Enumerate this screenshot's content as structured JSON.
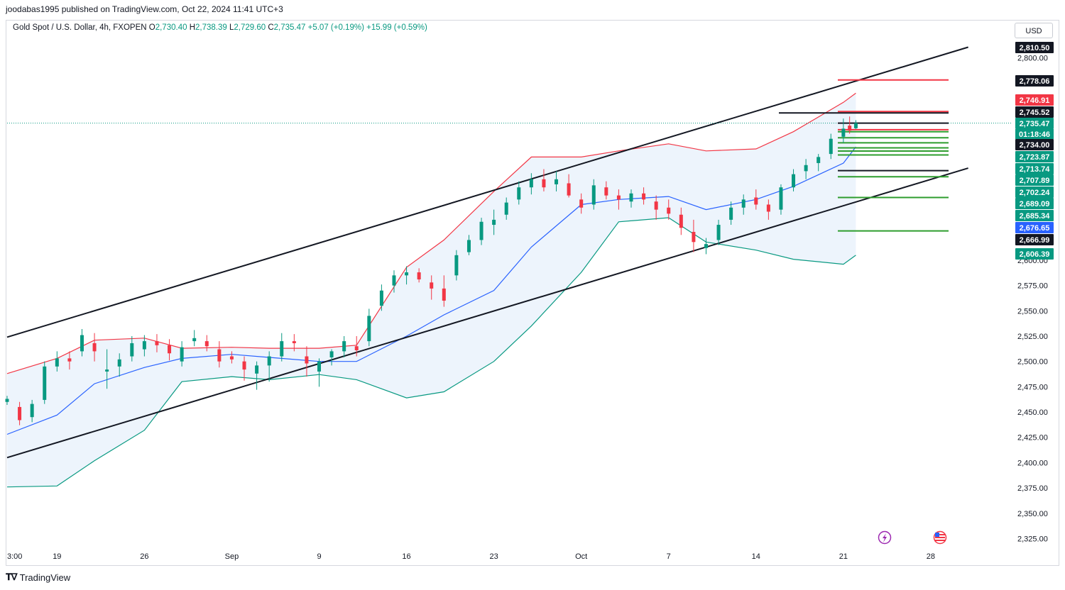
{
  "publisher_line": "joodabas1995 published on TradingView.com, Oct 22, 2024 11:41 UTC+3",
  "legend": {
    "symbol": "Gold Spot / U.S. Dollar, 4h, FXOPEN",
    "open_label": "O",
    "open": "2,730.40",
    "high_label": "H",
    "high": "2,738.39",
    "low_label": "L",
    "low": "2,729.60",
    "close_label": "C",
    "close": "2,735.47",
    "change": "+5.07 (+0.19%)",
    "change2": "+15.99 (+0.59%)"
  },
  "currency_button": "USD",
  "brand": "TradingView",
  "countdown": "01:18:46",
  "colors": {
    "up": "#089981",
    "down": "#f23645",
    "bb_upper": "#f23645",
    "bb_lower": "#089981",
    "bb_mid": "#2962ff",
    "band_fill": "#e8f1fb",
    "trend": "#131722"
  },
  "chart_data": {
    "type": "candlestick",
    "symbol": "Gold Spot / U.S. Dollar",
    "interval": "4h",
    "y_axis": {
      "min": 2325,
      "max": 2810.5,
      "ticks": [
        2325,
        2350,
        2375,
        2400,
        2425,
        2450,
        2475,
        2500,
        2525,
        2550,
        2575,
        2600,
        2800
      ],
      "tick_labels": [
        "2,325.00",
        "2,350.00",
        "2,375.00",
        "2,400.00",
        "2,425.00",
        "2,450.00",
        "2,475.00",
        "2,500.00",
        "2,525.00",
        "2,550.00",
        "2,575.00",
        "2,600.00",
        "2,800.00"
      ]
    },
    "x_axis": {
      "labels": [
        "3:00",
        "19",
        "26",
        "Sep",
        "9",
        "16",
        "23",
        "Oct",
        "7",
        "14",
        "21",
        "28"
      ],
      "dates": [
        "2024-08-15",
        "2024-08-19",
        "2024-08-26",
        "2024-09-02",
        "2024-09-09",
        "2024-09-16",
        "2024-09-23",
        "2024-09-30",
        "2024-10-07",
        "2024-10-14",
        "2024-10-21",
        "2024-10-28"
      ]
    },
    "price_tags": [
      {
        "value": "2,810.50",
        "kind": "black"
      },
      {
        "value": "2,778.06",
        "kind": "black"
      },
      {
        "value": "2,746.91",
        "kind": "red"
      },
      {
        "value": "2,745.52",
        "kind": "black"
      },
      {
        "value": "2,735.47",
        "kind": "green"
      },
      {
        "value": "2,734.00",
        "kind": "black"
      },
      {
        "value": "2,723.87",
        "kind": "green"
      },
      {
        "value": "2,713.74",
        "kind": "green"
      },
      {
        "value": "2,707.89",
        "kind": "green"
      },
      {
        "value": "2,702.24",
        "kind": "green"
      },
      {
        "value": "2,689.09",
        "kind": "green"
      },
      {
        "value": "2,685.34",
        "kind": "green"
      },
      {
        "value": "2,676.65",
        "kind": "blue"
      },
      {
        "value": "2,666.99",
        "kind": "black"
      },
      {
        "value": "2,606.39",
        "kind": "teal"
      }
    ],
    "trendlines": [
      {
        "from": [
          "2024-08-15",
          2524
        ],
        "to": [
          "2024-10-31",
          2810.5
        ]
      },
      {
        "from": [
          "2024-08-15",
          2405
        ],
        "to": [
          "2024-10-31",
          2691
        ]
      }
    ],
    "horizontal_levels": [
      {
        "price": 2778.06,
        "color": "red"
      },
      {
        "price": 2746.91,
        "color": "red"
      },
      {
        "price": 2745.52,
        "color": "black"
      },
      {
        "price": 2735.47,
        "color": "black"
      },
      {
        "price": 2729.0,
        "color": "red"
      },
      {
        "price": 2727.0,
        "color": "green"
      },
      {
        "price": 2721.0,
        "color": "green"
      },
      {
        "price": 2716.0,
        "color": "green"
      },
      {
        "price": 2711.0,
        "color": "green"
      },
      {
        "price": 2707.89,
        "color": "green"
      },
      {
        "price": 2704.0,
        "color": "green"
      },
      {
        "price": 2688.5,
        "color": "black"
      },
      {
        "price": 2682.5,
        "color": "green"
      },
      {
        "price": 2662.0,
        "color": "green"
      },
      {
        "price": 2629.0,
        "color": "green"
      }
    ],
    "bollinger": {
      "x": [
        "2024-08-15",
        "2024-08-19",
        "2024-08-22",
        "2024-08-26",
        "2024-08-29",
        "2024-09-02",
        "2024-09-05",
        "2024-09-09",
        "2024-09-12",
        "2024-09-16",
        "2024-09-19",
        "2024-09-23",
        "2024-09-26",
        "2024-09-30",
        "2024-10-03",
        "2024-10-07",
        "2024-10-10",
        "2024-10-14",
        "2024-10-17",
        "2024-10-21",
        "2024-10-22"
      ],
      "upper": [
        2488,
        2503,
        2521,
        2523,
        2513,
        2514,
        2513,
        2513,
        2516,
        2593,
        2620,
        2668,
        2702,
        2702,
        2708,
        2715,
        2708,
        2710,
        2727,
        2756,
        2765
      ],
      "middle": [
        2428,
        2447,
        2478,
        2494,
        2503,
        2507,
        2504,
        2500,
        2500,
        2525,
        2546,
        2570,
        2613,
        2655,
        2660,
        2663,
        2650,
        2660,
        2673,
        2696,
        2712
      ],
      "lower": [
        2376,
        2377,
        2402,
        2432,
        2480,
        2485,
        2482,
        2487,
        2482,
        2464,
        2470,
        2500,
        2535,
        2588,
        2638,
        2642,
        2618,
        2610,
        2601,
        2596,
        2605
      ]
    },
    "candles": [
      [
        "2024-08-15",
        2460,
        2466,
        2457,
        2463
      ],
      [
        "2024-08-16",
        2455,
        2460,
        2437,
        2442
      ],
      [
        "2024-08-17",
        2445,
        2462,
        2440,
        2458
      ],
      [
        "2024-08-18",
        2462,
        2500,
        2458,
        2495
      ],
      [
        "2024-08-19",
        2495,
        2510,
        2490,
        2503
      ],
      [
        "2024-08-20",
        2503,
        2510,
        2492,
        2500
      ],
      [
        "2024-08-21",
        2510,
        2532,
        2505,
        2526
      ],
      [
        "2024-08-22",
        2518,
        2528,
        2500,
        2510
      ],
      [
        "2024-08-23",
        2490,
        2512,
        2473,
        2492
      ],
      [
        "2024-08-24",
        2495,
        2508,
        2485,
        2502
      ],
      [
        "2024-08-25",
        2505,
        2525,
        2500,
        2518
      ],
      [
        "2024-08-26",
        2512,
        2526,
        2505,
        2520
      ],
      [
        "2024-08-27",
        2520,
        2527,
        2509,
        2516
      ],
      [
        "2024-08-28",
        2516,
        2522,
        2501,
        2508
      ],
      [
        "2024-08-29",
        2500,
        2520,
        2495,
        2514
      ],
      [
        "2024-08-30",
        2520,
        2531,
        2515,
        2523
      ],
      [
        "2024-08-31",
        2520,
        2526,
        2510,
        2515
      ],
      [
        "2024-09-01",
        2512,
        2520,
        2494,
        2500
      ],
      [
        "2024-09-02",
        2505,
        2510,
        2498,
        2502
      ],
      [
        "2024-09-03",
        2500,
        2505,
        2481,
        2492
      ],
      [
        "2024-09-04",
        2488,
        2500,
        2472,
        2496
      ],
      [
        "2024-09-05",
        2496,
        2510,
        2480,
        2505
      ],
      [
        "2024-09-06",
        2505,
        2528,
        2500,
        2520
      ],
      [
        "2024-09-07",
        2520,
        2527,
        2510,
        2518
      ],
      [
        "2024-09-08",
        2505,
        2515,
        2485,
        2498
      ],
      [
        "2024-09-09",
        2490,
        2503,
        2475,
        2500
      ],
      [
        "2024-09-10",
        2504,
        2512,
        2496,
        2510
      ],
      [
        "2024-09-11",
        2510,
        2525,
        2504,
        2520
      ],
      [
        "2024-09-12",
        2515,
        2525,
        2505,
        2511
      ],
      [
        "2024-09-13",
        2520,
        2552,
        2515,
        2545
      ],
      [
        "2024-09-14",
        2555,
        2576,
        2550,
        2570
      ],
      [
        "2024-09-15",
        2575,
        2590,
        2568,
        2585
      ],
      [
        "2024-09-16",
        2585,
        2594,
        2576,
        2588
      ],
      [
        "2024-09-17",
        2588,
        2592,
        2578,
        2581
      ],
      [
        "2024-09-18",
        2578,
        2585,
        2561,
        2572
      ],
      [
        "2024-09-19",
        2572,
        2585,
        2554,
        2560
      ],
      [
        "2024-09-20",
        2585,
        2610,
        2580,
        2605
      ],
      [
        "2024-09-21",
        2608,
        2625,
        2605,
        2620
      ],
      [
        "2024-09-22",
        2620,
        2642,
        2615,
        2638
      ],
      [
        "2024-09-23",
        2635,
        2650,
        2625,
        2640
      ],
      [
        "2024-09-24",
        2645,
        2662,
        2640,
        2657
      ],
      [
        "2024-09-25",
        2660,
        2678,
        2655,
        2672
      ],
      [
        "2024-09-26",
        2672,
        2686,
        2665,
        2680
      ],
      [
        "2024-09-27",
        2680,
        2690,
        2668,
        2672
      ],
      [
        "2024-09-28",
        2675,
        2688,
        2668,
        2680
      ],
      [
        "2024-09-29",
        2676,
        2685,
        2662,
        2664
      ],
      [
        "2024-09-30",
        2660,
        2666,
        2646,
        2652
      ],
      [
        "2024-10-01",
        2655,
        2680,
        2650,
        2674
      ],
      [
        "2024-10-02",
        2672,
        2678,
        2660,
        2664
      ],
      [
        "2024-10-03",
        2664,
        2670,
        2650,
        2660
      ],
      [
        "2024-10-04",
        2658,
        2670,
        2652,
        2666
      ],
      [
        "2024-10-05",
        2666,
        2672,
        2655,
        2660
      ],
      [
        "2024-10-06",
        2658,
        2664,
        2640,
        2650
      ],
      [
        "2024-10-07",
        2652,
        2660,
        2640,
        2646
      ],
      [
        "2024-10-08",
        2645,
        2652,
        2625,
        2632
      ],
      [
        "2024-10-09",
        2628,
        2640,
        2608,
        2618
      ],
      [
        "2024-10-10",
        2612,
        2622,
        2606,
        2616
      ],
      [
        "2024-10-11",
        2620,
        2640,
        2615,
        2635
      ],
      [
        "2024-10-12",
        2640,
        2658,
        2635,
        2652
      ],
      [
        "2024-10-13",
        2652,
        2665,
        2645,
        2660
      ],
      [
        "2024-10-14",
        2662,
        2670,
        2650,
        2655
      ],
      [
        "2024-10-15",
        2655,
        2660,
        2640,
        2648
      ],
      [
        "2024-10-16",
        2650,
        2675,
        2645,
        2672
      ],
      [
        "2024-10-17",
        2672,
        2690,
        2668,
        2685
      ],
      [
        "2024-10-18",
        2688,
        2700,
        2680,
        2694
      ],
      [
        "2024-10-19",
        2696,
        2705,
        2688,
        2702
      ],
      [
        "2024-10-20",
        2705,
        2725,
        2700,
        2720
      ],
      [
        "2024-10-21",
        2722,
        2740,
        2716,
        2730
      ],
      [
        "2024-10-21T12",
        2733,
        2742,
        2725,
        2728
      ],
      [
        "2024-10-22",
        2730.4,
        2738.39,
        2729.6,
        2735.47
      ]
    ]
  }
}
